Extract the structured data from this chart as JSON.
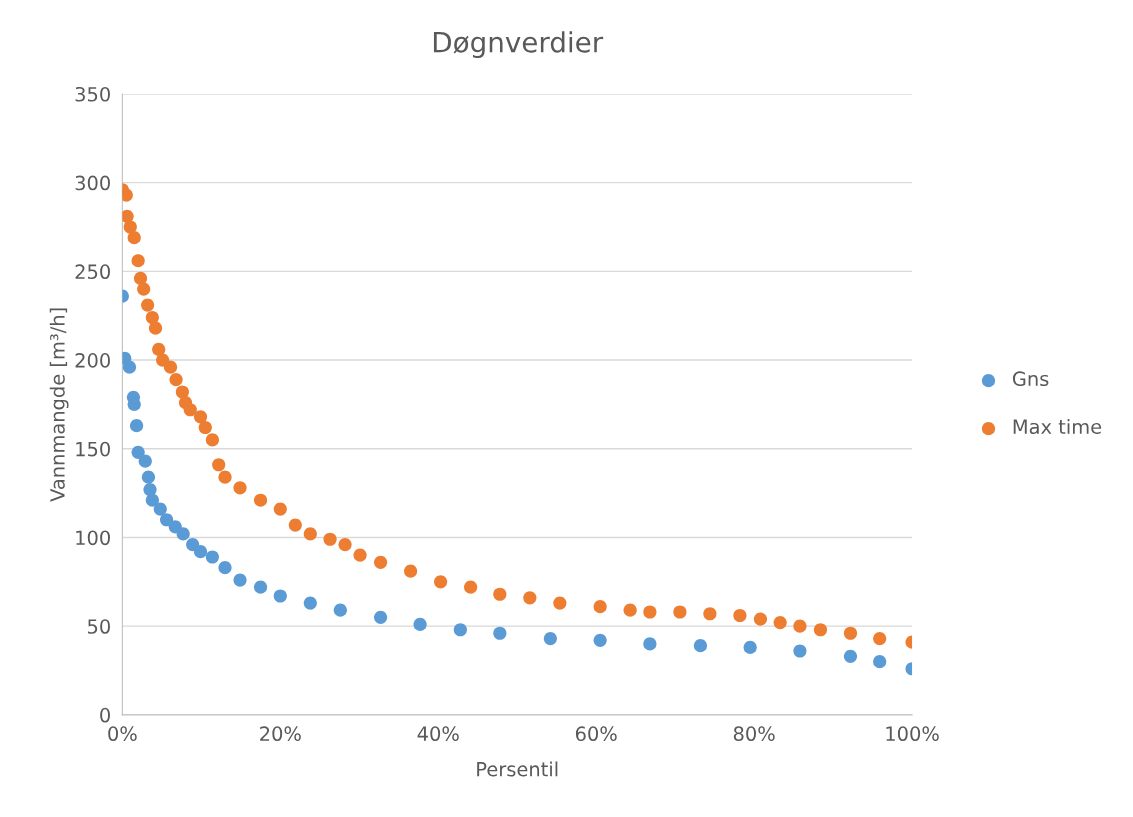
{
  "chart_data": {
    "type": "scatter",
    "title": "Døgnverdier",
    "xlabel": "Persentil",
    "ylabel": "Vannmangde [m³/h]",
    "xlim": [
      0,
      1
    ],
    "xticks": [
      {
        "value": 0,
        "label": "0%"
      },
      {
        "value": 0.2,
        "label": "20%"
      },
      {
        "value": 0.4,
        "label": "40%"
      },
      {
        "value": 0.6,
        "label": "60%"
      },
      {
        "value": 0.8,
        "label": "80%"
      },
      {
        "value": 1,
        "label": "100%"
      }
    ],
    "ylim": [
      0,
      350
    ],
    "yticks": [
      0,
      50,
      100,
      150,
      200,
      250,
      300,
      350
    ],
    "grid": "y",
    "legend": "right",
    "marker": "circle",
    "series": [
      {
        "name": "Gns",
        "color": "#5b9bd5",
        "x": [
          0,
          0.003,
          0.009,
          0.014,
          0.015,
          0.018,
          0.02,
          0.029,
          0.033,
          0.035,
          0.038,
          0.048,
          0.056,
          0.067,
          0.077,
          0.089,
          0.099,
          0.114,
          0.13,
          0.149,
          0.175,
          0.2,
          0.238,
          0.276,
          0.327,
          0.377,
          0.428,
          0.478,
          0.542,
          0.605,
          0.668,
          0.732,
          0.795,
          0.858,
          0.922,
          0.959,
          1.0
        ],
        "values": [
          236,
          201,
          196,
          179,
          175,
          163,
          148,
          143,
          134,
          127,
          121,
          116,
          110,
          106,
          102,
          96,
          92,
          89,
          83,
          76,
          72,
          67,
          63,
          59,
          55,
          51,
          48,
          46,
          43,
          42,
          40,
          39,
          38,
          36,
          33,
          30,
          26
        ]
      },
      {
        "name": "Max time",
        "color": "#ed7d31",
        "x": [
          0,
          0.005,
          0.006,
          0.01,
          0.015,
          0.02,
          0.023,
          0.027,
          0.032,
          0.038,
          0.042,
          0.046,
          0.051,
          0.061,
          0.068,
          0.076,
          0.08,
          0.086,
          0.099,
          0.105,
          0.114,
          0.122,
          0.13,
          0.149,
          0.175,
          0.2,
          0.219,
          0.238,
          0.263,
          0.282,
          0.301,
          0.327,
          0.365,
          0.403,
          0.441,
          0.478,
          0.516,
          0.554,
          0.605,
          0.643,
          0.668,
          0.706,
          0.744,
          0.782,
          0.808,
          0.833,
          0.858,
          0.884,
          0.922,
          0.959,
          1.0
        ],
        "values": [
          296,
          293,
          281,
          275,
          269,
          256,
          246,
          240,
          231,
          224,
          218,
          206,
          200,
          196,
          189,
          182,
          176,
          172,
          168,
          162,
          155,
          141,
          134,
          128,
          121,
          116,
          107,
          102,
          99,
          96,
          90,
          86,
          81,
          75,
          72,
          68,
          66,
          63,
          61,
          59,
          58,
          58,
          57,
          56,
          54,
          52,
          50,
          48,
          46,
          43,
          41
        ]
      }
    ]
  }
}
